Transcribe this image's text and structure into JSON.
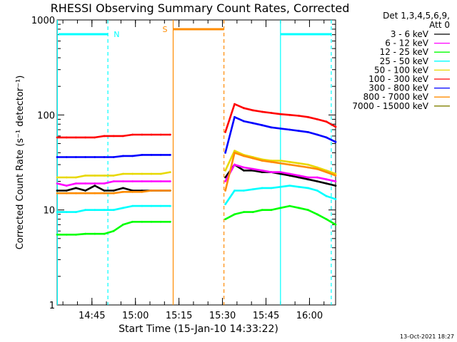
{
  "chart_data": {
    "type": "line",
    "title": "RHESSI Observing Summary Count Rates, Corrected",
    "xlabel": "Start Time (15-Jan-10 14:33:22)",
    "ylabel": "Corrected Count Rate (s⁻¹ detector⁻¹)",
    "yscale": "log",
    "ylim": [
      1,
      1000
    ],
    "xlim_minutes": [
      0,
      96
    ],
    "x_ticks": [
      "14:45",
      "15:00",
      "15:15",
      "15:30",
      "15:45",
      "16:00"
    ],
    "y_ticks": [
      "1",
      "10",
      "100",
      "1000"
    ],
    "legend_header": [
      "Det 1,3,4,5,6,9,",
      "Att 0"
    ],
    "legend_position": "right",
    "series": [
      {
        "name": "3 - 6 keV",
        "color": "#000000",
        "values": [
          16,
          16,
          17,
          16,
          18,
          16,
          16,
          17,
          16,
          16,
          16,
          16,
          16,
          22,
          30,
          26,
          26,
          25,
          25,
          24,
          23,
          22,
          21,
          20,
          19,
          18
        ]
      },
      {
        "name": "6 - 12 keV",
        "color": "#ff00ff",
        "values": [
          19,
          18,
          19,
          19,
          19,
          19,
          20,
          20,
          20,
          20,
          20,
          20,
          20,
          20,
          30,
          28,
          27,
          26,
          25,
          25,
          24,
          23,
          22,
          22,
          21,
          20
        ]
      },
      {
        "name": "12 - 25 keV",
        "color": "#00ff00",
        "values": [
          5.5,
          5.5,
          5.5,
          5.6,
          5.6,
          5.6,
          6,
          7,
          7.5,
          7.5,
          7.5,
          7.5,
          7.5,
          8,
          9,
          9.5,
          9.5,
          10,
          10,
          10.5,
          11,
          10.5,
          10,
          9,
          8,
          7
        ]
      },
      {
        "name": "25 - 50 keV",
        "color": "#00ffff",
        "values": [
          9.5,
          9.5,
          9.5,
          10,
          10,
          10,
          10,
          10.5,
          11,
          11,
          11,
          11,
          11,
          11.5,
          16,
          16,
          16.5,
          17,
          17,
          17.5,
          18,
          17.5,
          17,
          16,
          14,
          13
        ]
      },
      {
        "name": "50 - 100 keV",
        "color": "#e8d800",
        "values": [
          22,
          22,
          22,
          23,
          23,
          23,
          23,
          24,
          24,
          24,
          24,
          24,
          25,
          26,
          42,
          38,
          36,
          34,
          33,
          33,
          32,
          31,
          30,
          28,
          26,
          24
        ]
      },
      {
        "name": "100 - 300 keV",
        "color": "#ff0000",
        "values": [
          58,
          58,
          58,
          58,
          58,
          60,
          60,
          60,
          62,
          62,
          62,
          62,
          62,
          66,
          130,
          118,
          112,
          108,
          105,
          102,
          100,
          98,
          95,
          90,
          85,
          75
        ]
      },
      {
        "name": "300 - 800 keV",
        "color": "#0000ff",
        "values": [
          36,
          36,
          36,
          36,
          36,
          36,
          36,
          37,
          37,
          38,
          38,
          38,
          38,
          40,
          95,
          86,
          82,
          78,
          74,
          72,
          70,
          68,
          66,
          62,
          58,
          52
        ]
      },
      {
        "name": "800 - 7000 keV",
        "color": "#ff8c00",
        "values": [
          15,
          15,
          15,
          15,
          15,
          15,
          15,
          15.5,
          15.5,
          15.5,
          16,
          16,
          16,
          16,
          40,
          37,
          35,
          33,
          32,
          31,
          30,
          29,
          28,
          27,
          25,
          23
        ]
      },
      {
        "name": "7000 - 15000 keV",
        "color": "#808000",
        "values": []
      }
    ],
    "markers": [
      {
        "label": "N",
        "color": "#00ffff",
        "kind": "night"
      },
      {
        "label": "S",
        "color": "#ff8c00",
        "kind": "SAA"
      }
    ],
    "footer_date": "13-Oct-2021 18:27"
  }
}
